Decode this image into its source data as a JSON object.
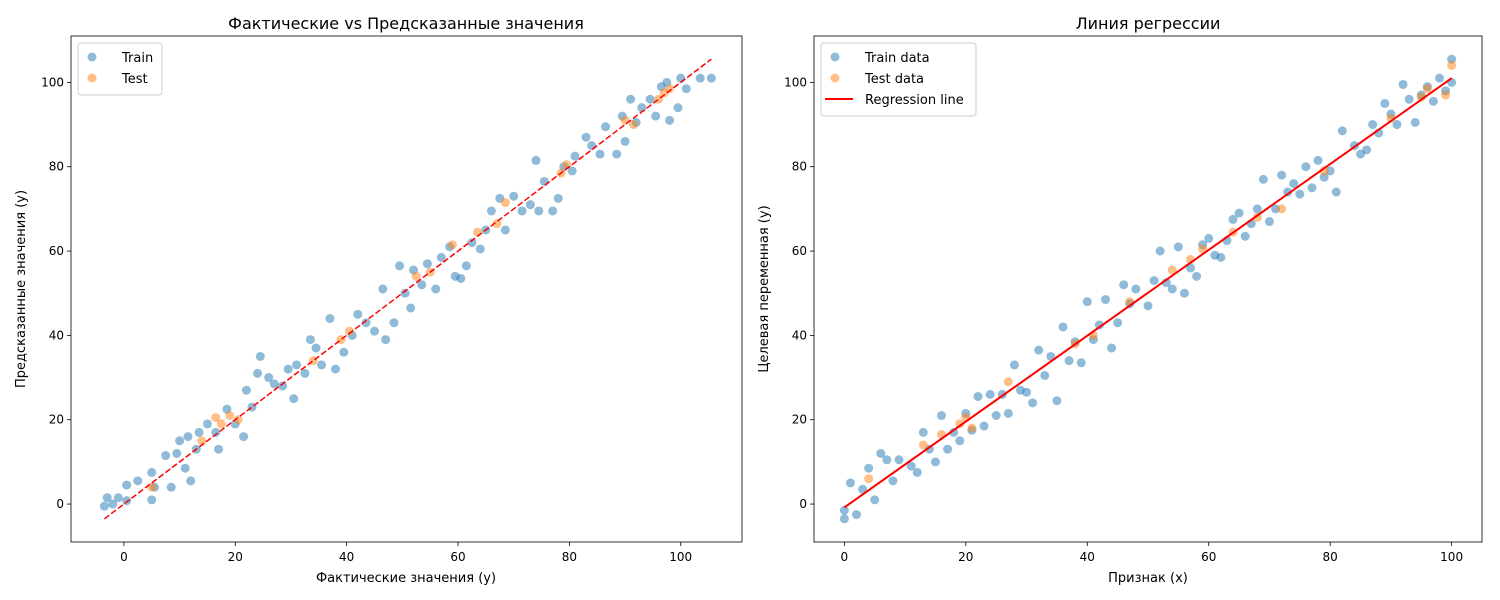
{
  "chart_data": [
    {
      "type": "scatter",
      "title": "Фактические vs Предсказанные значения",
      "xlabel": "Фактические значения (y)",
      "ylabel": "Предсказанные значения (y)",
      "xlim": [
        -9.5,
        111.0
      ],
      "ylim": [
        -9.0,
        111.0
      ],
      "xticks": [
        0,
        20,
        40,
        60,
        80,
        100
      ],
      "yticks": [
        0,
        20,
        40,
        60,
        80,
        100
      ],
      "grid": false,
      "legend_position": "top-left",
      "series": [
        {
          "name": "Train",
          "kind": "scatter",
          "color": "#1f77b4",
          "points": [
            [
              -3.5,
              -0.5
            ],
            [
              -3.0,
              1.5
            ],
            [
              -2.0,
              0.0
            ],
            [
              -1.0,
              1.5
            ],
            [
              0.5,
              4.5
            ],
            [
              0.5,
              0.8
            ],
            [
              2.5,
              5.5
            ],
            [
              5.0,
              1.0
            ],
            [
              5.0,
              7.5
            ],
            [
              5.5,
              4.0
            ],
            [
              7.5,
              11.5
            ],
            [
              8.5,
              4.0
            ],
            [
              9.5,
              12.0
            ],
            [
              10.0,
              15.0
            ],
            [
              11.0,
              8.5
            ],
            [
              11.5,
              16.0
            ],
            [
              12.0,
              5.5
            ],
            [
              13.0,
              13.0
            ],
            [
              13.5,
              17.0
            ],
            [
              15.0,
              19.0
            ],
            [
              16.5,
              17.0
            ],
            [
              17.0,
              13.0
            ],
            [
              18.5,
              22.5
            ],
            [
              20.0,
              19.0
            ],
            [
              21.5,
              16.0
            ],
            [
              22.0,
              27.0
            ],
            [
              23.0,
              23.0
            ],
            [
              24.0,
              31.0
            ],
            [
              24.5,
              35.0
            ],
            [
              26.0,
              30.0
            ],
            [
              27.0,
              28.5
            ],
            [
              28.5,
              28.0
            ],
            [
              29.5,
              32.0
            ],
            [
              30.5,
              25.0
            ],
            [
              31.0,
              33.0
            ],
            [
              32.5,
              31.0
            ],
            [
              33.5,
              39.0
            ],
            [
              34.5,
              37.0
            ],
            [
              35.5,
              33.0
            ],
            [
              37.0,
              44.0
            ],
            [
              38.0,
              32.0
            ],
            [
              39.5,
              36.0
            ],
            [
              41.0,
              40.0
            ],
            [
              42.0,
              45.0
            ],
            [
              43.5,
              43.0
            ],
            [
              45.0,
              41.0
            ],
            [
              46.5,
              51.0
            ],
            [
              47.0,
              39.0
            ],
            [
              48.5,
              43.0
            ],
            [
              49.5,
              56.5
            ],
            [
              50.5,
              50.0
            ],
            [
              51.5,
              46.5
            ],
            [
              52.0,
              55.5
            ],
            [
              53.5,
              52.0
            ],
            [
              54.5,
              57.0
            ],
            [
              56.0,
              51.0
            ],
            [
              57.0,
              58.5
            ],
            [
              58.5,
              61.0
            ],
            [
              59.5,
              54.0
            ],
            [
              60.5,
              53.5
            ],
            [
              61.5,
              56.5
            ],
            [
              62.5,
              62.0
            ],
            [
              64.0,
              60.5
            ],
            [
              65.0,
              65.0
            ],
            [
              66.0,
              69.5
            ],
            [
              67.5,
              72.5
            ],
            [
              68.5,
              65.0
            ],
            [
              70.0,
              73.0
            ],
            [
              71.5,
              69.5
            ],
            [
              73.0,
              71.0
            ],
            [
              74.0,
              81.5
            ],
            [
              74.5,
              69.5
            ],
            [
              75.5,
              76.5
            ],
            [
              77.0,
              69.5
            ],
            [
              78.0,
              72.5
            ],
            [
              79.0,
              80.0
            ],
            [
              80.5,
              79.0
            ],
            [
              81.0,
              82.5
            ],
            [
              83.0,
              87.0
            ],
            [
              84.0,
              85.0
            ],
            [
              85.5,
              83.0
            ],
            [
              86.5,
              89.5
            ],
            [
              88.5,
              83.0
            ],
            [
              89.5,
              92.0
            ],
            [
              90.0,
              86.0
            ],
            [
              91.0,
              96.0
            ],
            [
              92.0,
              90.5
            ],
            [
              93.0,
              94.0
            ],
            [
              94.5,
              96.0
            ],
            [
              95.5,
              92.0
            ],
            [
              96.5,
              99.0
            ],
            [
              97.5,
              100.0
            ],
            [
              98.0,
              91.0
            ],
            [
              99.5,
              94.0
            ],
            [
              100.0,
              101.0
            ],
            [
              101.0,
              98.5
            ],
            [
              103.5,
              101.0
            ],
            [
              105.5,
              101.0
            ]
          ]
        },
        {
          "name": "Test",
          "kind": "scatter",
          "color": "#ff7f0e",
          "points": [
            [
              5.0,
              4.0
            ],
            [
              14.0,
              15.0
            ],
            [
              16.5,
              20.5
            ],
            [
              17.5,
              19.0
            ],
            [
              19.0,
              21.0
            ],
            [
              20.5,
              20.0
            ],
            [
              34.0,
              34.0
            ],
            [
              39.0,
              39.0
            ],
            [
              40.5,
              41.0
            ],
            [
              52.5,
              54.0
            ],
            [
              55.0,
              55.0
            ],
            [
              59.0,
              61.5
            ],
            [
              63.5,
              64.5
            ],
            [
              67.0,
              66.5
            ],
            [
              68.5,
              71.5
            ],
            [
              78.5,
              78.5
            ],
            [
              79.5,
              80.5
            ],
            [
              90.0,
              91.0
            ],
            [
              91.5,
              90.0
            ],
            [
              96.0,
              96.0
            ],
            [
              97.0,
              97.5
            ],
            [
              98.0,
              98.5
            ]
          ]
        },
        {
          "name": "",
          "kind": "line",
          "style": "dashed",
          "color": "#ff0000",
          "points": [
            [
              -3.5,
              -3.5
            ],
            [
              105.5,
              105.5
            ]
          ]
        }
      ]
    },
    {
      "type": "scatter",
      "title": "Линия регрессии",
      "xlabel": "Признак (x)",
      "ylabel": "Целевая переменная (y)",
      "xlim": [
        -5.0,
        105.0
      ],
      "ylim": [
        -9.0,
        111.0
      ],
      "xticks": [
        0,
        20,
        40,
        60,
        80,
        100
      ],
      "yticks": [
        0,
        20,
        40,
        60,
        80,
        100
      ],
      "grid": false,
      "legend_position": "top-left",
      "series": [
        {
          "name": "Train data",
          "kind": "scatter",
          "color": "#1f77b4",
          "points": [
            [
              0.0,
              -3.5
            ],
            [
              0.0,
              -1.5
            ],
            [
              1.0,
              5.0
            ],
            [
              2.0,
              -2.5
            ],
            [
              3.0,
              3.5
            ],
            [
              4.0,
              8.5
            ],
            [
              5.0,
              1.0
            ],
            [
              6.0,
              12.0
            ],
            [
              7.0,
              10.5
            ],
            [
              8.0,
              5.5
            ],
            [
              9.0,
              10.5
            ],
            [
              11.0,
              9.0
            ],
            [
              12.0,
              7.5
            ],
            [
              13.0,
              17.0
            ],
            [
              14.0,
              13.0
            ],
            [
              15.0,
              10.0
            ],
            [
              16.0,
              21.0
            ],
            [
              17.0,
              13.0
            ],
            [
              18.0,
              17.0
            ],
            [
              19.0,
              15.0
            ],
            [
              20.0,
              21.5
            ],
            [
              21.0,
              17.5
            ],
            [
              22.0,
              25.5
            ],
            [
              23.0,
              18.5
            ],
            [
              24.0,
              26.0
            ],
            [
              25.0,
              21.0
            ],
            [
              26.0,
              26.0
            ],
            [
              27.0,
              21.5
            ],
            [
              28.0,
              33.0
            ],
            [
              29.0,
              27.0
            ],
            [
              30.0,
              26.5
            ],
            [
              31.0,
              24.0
            ],
            [
              32.0,
              36.5
            ],
            [
              33.0,
              30.5
            ],
            [
              34.0,
              35.0
            ],
            [
              35.0,
              24.5
            ],
            [
              36.0,
              42.0
            ],
            [
              37.0,
              34.0
            ],
            [
              38.0,
              38.5
            ],
            [
              39.0,
              33.5
            ],
            [
              40.0,
              48.0
            ],
            [
              41.0,
              39.0
            ],
            [
              42.0,
              42.5
            ],
            [
              43.0,
              48.5
            ],
            [
              44.0,
              37.0
            ],
            [
              45.0,
              43.0
            ],
            [
              46.0,
              52.0
            ],
            [
              47.0,
              47.5
            ],
            [
              48.0,
              51.0
            ],
            [
              50.0,
              47.0
            ],
            [
              51.0,
              53.0
            ],
            [
              52.0,
              60.0
            ],
            [
              53.0,
              52.5
            ],
            [
              54.0,
              51.0
            ],
            [
              55.0,
              61.0
            ],
            [
              56.0,
              50.0
            ],
            [
              57.0,
              56.0
            ],
            [
              58.0,
              54.0
            ],
            [
              59.0,
              61.5
            ],
            [
              60.0,
              63.0
            ],
            [
              61.0,
              59.0
            ],
            [
              62.0,
              58.5
            ],
            [
              63.0,
              62.5
            ],
            [
              64.0,
              67.5
            ],
            [
              65.0,
              69.0
            ],
            [
              66.0,
              63.5
            ],
            [
              67.0,
              66.5
            ],
            [
              68.0,
              70.0
            ],
            [
              69.0,
              77.0
            ],
            [
              70.0,
              67.0
            ],
            [
              71.0,
              70.0
            ],
            [
              72.0,
              78.0
            ],
            [
              73.0,
              74.0
            ],
            [
              74.0,
              76.0
            ],
            [
              75.0,
              73.5
            ],
            [
              76.0,
              80.0
            ],
            [
              77.0,
              75.0
            ],
            [
              78.0,
              81.5
            ],
            [
              79.0,
              77.5
            ],
            [
              80.0,
              79.0
            ],
            [
              81.0,
              74.0
            ],
            [
              82.0,
              88.5
            ],
            [
              84.0,
              85.0
            ],
            [
              85.0,
              83.0
            ],
            [
              86.0,
              84.0
            ],
            [
              87.0,
              90.0
            ],
            [
              88.0,
              88.0
            ],
            [
              89.0,
              95.0
            ],
            [
              90.0,
              92.5
            ],
            [
              91.0,
              90.0
            ],
            [
              92.0,
              99.5
            ],
            [
              93.0,
              96.0
            ],
            [
              94.0,
              90.5
            ],
            [
              95.0,
              97.0
            ],
            [
              96.0,
              99.0
            ],
            [
              97.0,
              95.5
            ],
            [
              98.0,
              101.0
            ],
            [
              99.0,
              98.0
            ],
            [
              100.0,
              105.5
            ],
            [
              100.0,
              100.0
            ]
          ]
        },
        {
          "name": "Test data",
          "kind": "scatter",
          "color": "#ff7f0e",
          "points": [
            [
              4.0,
              6.0
            ],
            [
              13.0,
              14.0
            ],
            [
              16.0,
              16.5
            ],
            [
              19.0,
              19.0
            ],
            [
              20.0,
              20.5
            ],
            [
              21.0,
              18.0
            ],
            [
              27.0,
              29.0
            ],
            [
              38.0,
              38.0
            ],
            [
              41.0,
              40.0
            ],
            [
              47.0,
              48.0
            ],
            [
              54.0,
              55.5
            ],
            [
              57.0,
              58.0
            ],
            [
              59.0,
              60.5
            ],
            [
              64.0,
              64.5
            ],
            [
              68.0,
              68.0
            ],
            [
              72.0,
              70.0
            ],
            [
              79.0,
              79.0
            ],
            [
              90.0,
              91.5
            ],
            [
              95.0,
              96.5
            ],
            [
              96.0,
              98.5
            ],
            [
              99.0,
              97.0
            ],
            [
              100.0,
              104.0
            ]
          ]
        },
        {
          "name": "Regression line",
          "kind": "line",
          "style": "solid",
          "color": "#ff0000",
          "points": [
            [
              0.0,
              -0.8
            ],
            [
              100.0,
              101.0
            ]
          ]
        }
      ]
    }
  ]
}
